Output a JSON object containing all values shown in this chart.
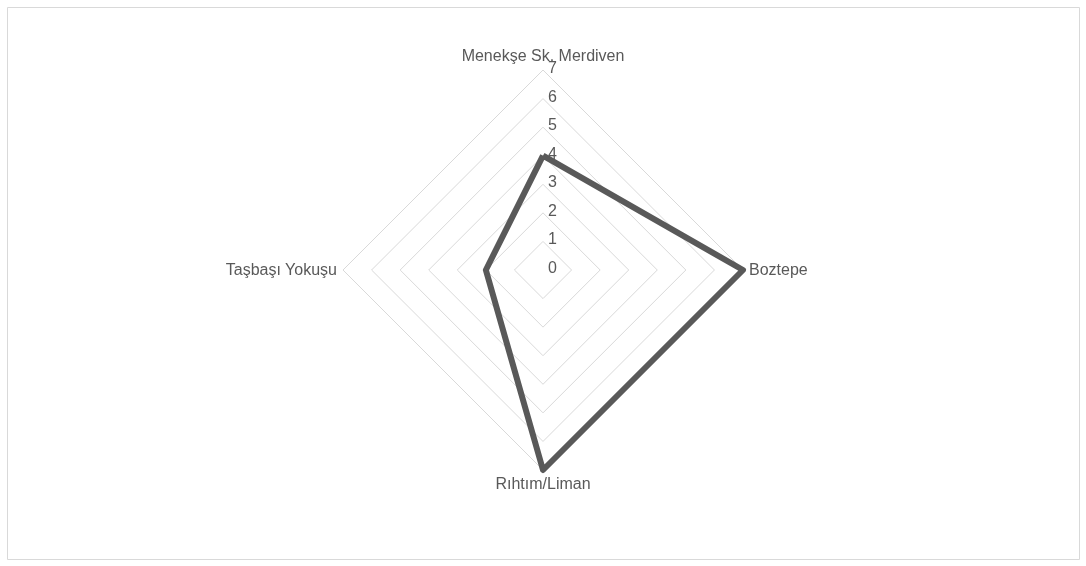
{
  "chart_data": {
    "type": "radar",
    "categories": [
      "Menekşe Sk. Merdiven",
      "Boztepe",
      "Rıhtım/Liman",
      "Taşbaşı Yokuşu"
    ],
    "series": [
      {
        "color": "#595959",
        "values": [
          4,
          7,
          7,
          2
        ]
      }
    ],
    "ylim": [
      0,
      7
    ],
    "yticks": [
      0,
      1,
      2,
      3,
      4,
      5,
      6,
      7
    ],
    "grid": true,
    "line_style": "solid"
  }
}
